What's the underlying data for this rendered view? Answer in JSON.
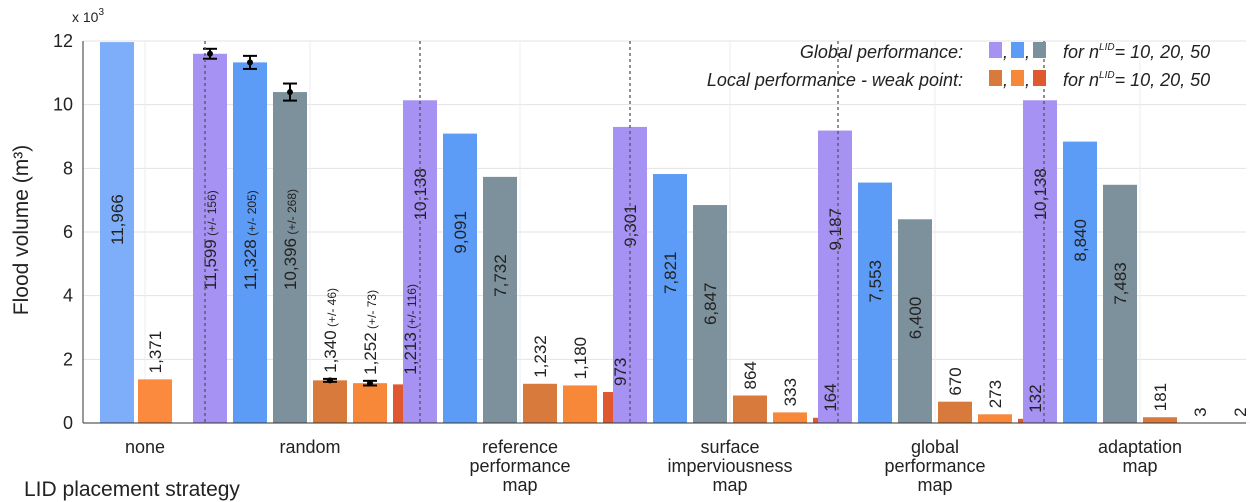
{
  "chart_data": {
    "type": "bar",
    "ylabel": "Flood volume (m³)",
    "xlabel": "LID placement strategy",
    "y_multiplier": "x 10",
    "y_multiplier_exponent": "3",
    "ylim": [
      0,
      12
    ],
    "yticks": [
      "0",
      "2",
      "4",
      "6",
      "8",
      "10",
      "12"
    ],
    "grid": true,
    "legend_placement": "top-right",
    "legend": {
      "global_label": "Global performance:",
      "local_label": "Local performance - weak point:",
      "for_prefix": "for n",
      "for_superscript": "LID",
      "for_values": "= 10, 20, 50",
      "separator": ","
    },
    "series_colors": {
      "global": [
        "#a692f2",
        "#5c9cf7",
        "#7d919c"
      ],
      "local": [
        "#d77a3b",
        "#f7883a",
        "#e0582f"
      ]
    },
    "groups": [
      {
        "label_lines": [
          "none"
        ],
        "bars": [
          {
            "kind": "global",
            "value": 11.966,
            "label": "11,966",
            "color": "#7eaef9"
          },
          {
            "kind": "local",
            "value": 1.371,
            "label": "1,371",
            "color": "#fb8a3e"
          }
        ]
      },
      {
        "label_lines": [
          "random"
        ],
        "bars": [
          {
            "kind": "global",
            "value": 11.599,
            "err": 0.156,
            "label": "11,599",
            "note": "(+/- 156)",
            "color": "#a692f2"
          },
          {
            "kind": "global",
            "value": 11.328,
            "err": 0.205,
            "label": "11,328",
            "note": "(+/- 205)",
            "color": "#5c9cf7"
          },
          {
            "kind": "global",
            "value": 10.396,
            "err": 0.268,
            "label": "10,396",
            "note": "(+/- 268)",
            "color": "#7d919c"
          },
          {
            "kind": "local",
            "value": 1.34,
            "err": 0.046,
            "label": "1,340",
            "note": "(+/- 46)",
            "color": "#d77a3b"
          },
          {
            "kind": "local",
            "value": 1.252,
            "err": 0.073,
            "label": "1,252",
            "note": "(+/- 73)",
            "color": "#f7883a"
          },
          {
            "kind": "local",
            "value": 1.213,
            "err": 0.116,
            "label": "1,213",
            "note": "(+/- 116)",
            "color": "#e0582f"
          }
        ]
      },
      {
        "label_lines": [
          "reference",
          "performance",
          "map"
        ],
        "bars": [
          {
            "kind": "global",
            "value": 10.138,
            "label": "10,138",
            "color": "#a692f2"
          },
          {
            "kind": "global",
            "value": 9.091,
            "label": "9,091",
            "color": "#5c9cf7"
          },
          {
            "kind": "global",
            "value": 7.732,
            "label": "7,732",
            "color": "#7d919c"
          },
          {
            "kind": "local",
            "value": 1.232,
            "label": "1,232",
            "color": "#d77a3b"
          },
          {
            "kind": "local",
            "value": 1.18,
            "label": "1,180",
            "color": "#f7883a"
          },
          {
            "kind": "local",
            "value": 0.973,
            "label": "973",
            "color": "#e0582f"
          }
        ]
      },
      {
        "label_lines": [
          "surface",
          "imperviousness",
          "map"
        ],
        "bars": [
          {
            "kind": "global",
            "value": 9.301,
            "label": "9,301",
            "color": "#a692f2"
          },
          {
            "kind": "global",
            "value": 7.821,
            "label": "7,821",
            "color": "#5c9cf7"
          },
          {
            "kind": "global",
            "value": 6.847,
            "label": "6,847",
            "color": "#7d919c"
          },
          {
            "kind": "local",
            "value": 0.864,
            "label": "864",
            "color": "#d77a3b"
          },
          {
            "kind": "local",
            "value": 0.333,
            "label": "333",
            "color": "#f7883a"
          },
          {
            "kind": "local",
            "value": 0.164,
            "label": "164",
            "color": "#e0582f"
          }
        ]
      },
      {
        "label_lines": [
          "global",
          "performance",
          "map"
        ],
        "bars": [
          {
            "kind": "global",
            "value": 9.187,
            "label": "9,187",
            "color": "#a692f2"
          },
          {
            "kind": "global",
            "value": 7.553,
            "label": "7,553",
            "color": "#5c9cf7"
          },
          {
            "kind": "global",
            "value": 6.4,
            "label": "6,400",
            "color": "#7d919c"
          },
          {
            "kind": "local",
            "value": 0.67,
            "label": "670",
            "color": "#d77a3b"
          },
          {
            "kind": "local",
            "value": 0.273,
            "label": "273",
            "color": "#f7883a"
          },
          {
            "kind": "local",
            "value": 0.132,
            "label": "132",
            "color": "#e0582f"
          }
        ]
      },
      {
        "label_lines": [
          "adaptation",
          "map"
        ],
        "bars": [
          {
            "kind": "global",
            "value": 10.138,
            "label": "10,138",
            "color": "#a692f2"
          },
          {
            "kind": "global",
            "value": 8.84,
            "label": "8,840",
            "color": "#5c9cf7"
          },
          {
            "kind": "global",
            "value": 7.483,
            "label": "7,483",
            "color": "#7d919c"
          },
          {
            "kind": "local",
            "value": 0.181,
            "label": "181",
            "color": "#d77a3b"
          },
          {
            "kind": "local",
            "value": 0.003,
            "label": "3",
            "color": "#f7883a"
          },
          {
            "kind": "local",
            "value": 0.002,
            "label": "2",
            "color": "#e0582f"
          }
        ]
      }
    ]
  }
}
